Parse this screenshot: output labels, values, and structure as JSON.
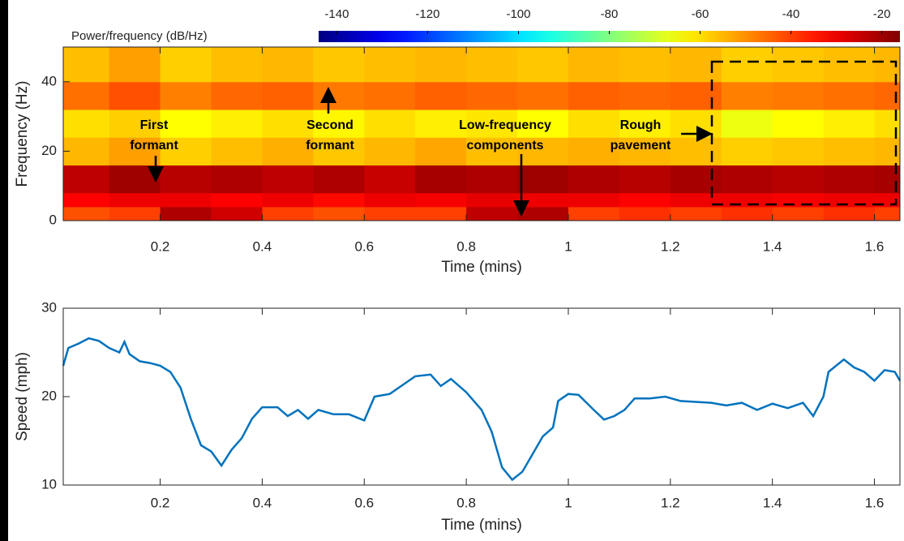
{
  "chart_data": [
    {
      "type": "heatmap",
      "xlabel": "Time (mins)",
      "ylabel": "Frequency (Hz)",
      "colorbar_label": "Power/frequency (dB/Hz)",
      "colormap": "jet",
      "clim": [
        -144,
        -16
      ],
      "colorbar_ticks": [
        -140,
        -120,
        -100,
        -80,
        -60,
        -40,
        -20
      ],
      "xlim": [
        0.01,
        1.65
      ],
      "ylim": [
        0,
        50
      ],
      "xticks": [
        0.2,
        0.4,
        0.6,
        0.8,
        1,
        1.2,
        1.4,
        1.6
      ],
      "yticks": [
        0,
        20,
        40
      ],
      "x": [
        0.01,
        0.1,
        0.2,
        0.3,
        0.4,
        0.5,
        0.6,
        0.7,
        0.8,
        0.9,
        1.0,
        1.1,
        1.2,
        1.3,
        1.4,
        1.5,
        1.6,
        1.65
      ],
      "y": [
        0,
        4,
        8,
        16,
        24,
        32,
        40,
        50
      ],
      "values": [
        [
          -42,
          -40,
          -22,
          -26,
          -40,
          -42,
          -40,
          -40,
          -24,
          -22,
          -40,
          -38,
          -40,
          -38,
          -40,
          -38,
          -40
        ],
        [
          -32,
          -30,
          -30,
          -32,
          -30,
          -33,
          -30,
          -31,
          -29,
          -30,
          -30,
          -32,
          -30,
          -30,
          -31,
          -30,
          -30
        ],
        [
          -24,
          -20,
          -23,
          -22,
          -24,
          -22,
          -25,
          -21,
          -22,
          -20,
          -22,
          -23,
          -21,
          -22,
          -23,
          -22,
          -21
        ],
        [
          -55,
          -52,
          -58,
          -56,
          -54,
          -57,
          -55,
          -53,
          -56,
          -55,
          -54,
          -55,
          -56,
          -58,
          -57,
          -56,
          -55
        ],
        [
          -60,
          -58,
          -64,
          -62,
          -60,
          -63,
          -60,
          -62,
          -61,
          -64,
          -60,
          -62,
          -60,
          -66,
          -64,
          -62,
          -60
        ],
        [
          -46,
          -42,
          -48,
          -45,
          -44,
          -47,
          -46,
          -44,
          -45,
          -46,
          -44,
          -45,
          -44,
          -48,
          -47,
          -46,
          -45
        ],
        [
          -56,
          -52,
          -58,
          -56,
          -55,
          -57,
          -56,
          -55,
          -56,
          -57,
          -55,
          -56,
          -55,
          -58,
          -57,
          -56,
          -55
        ]
      ],
      "annotations": [
        {
          "text": [
            "First",
            "formant"
          ]
        },
        {
          "text": [
            "Second",
            "formant"
          ]
        },
        {
          "text": [
            "Low-frequency",
            "components"
          ]
        },
        {
          "text": [
            "Rough",
            "pavement"
          ]
        }
      ]
    },
    {
      "type": "line",
      "xlabel": "Time (mins)",
      "ylabel": "Speed (mph)",
      "xlim": [
        0.01,
        1.65
      ],
      "ylim": [
        10,
        30
      ],
      "xticks": [
        0.2,
        0.4,
        0.6,
        0.8,
        1,
        1.2,
        1.4,
        1.6
      ],
      "yticks": [
        10,
        20,
        30
      ],
      "color": "#0072bd",
      "x": [
        0.01,
        0.02,
        0.04,
        0.06,
        0.08,
        0.1,
        0.12,
        0.13,
        0.14,
        0.16,
        0.18,
        0.2,
        0.22,
        0.24,
        0.26,
        0.28,
        0.3,
        0.32,
        0.34,
        0.36,
        0.38,
        0.4,
        0.43,
        0.45,
        0.47,
        0.49,
        0.51,
        0.54,
        0.57,
        0.6,
        0.62,
        0.65,
        0.68,
        0.7,
        0.73,
        0.75,
        0.77,
        0.8,
        0.83,
        0.85,
        0.87,
        0.89,
        0.91,
        0.93,
        0.95,
        0.97,
        0.98,
        1.0,
        1.02,
        1.05,
        1.07,
        1.09,
        1.11,
        1.13,
        1.16,
        1.19,
        1.22,
        1.25,
        1.28,
        1.31,
        1.34,
        1.37,
        1.4,
        1.43,
        1.46,
        1.48,
        1.5,
        1.51,
        1.54,
        1.56,
        1.58,
        1.6,
        1.62,
        1.64,
        1.65
      ],
      "values": [
        23.5,
        25.5,
        26,
        26.6,
        26.3,
        25.5,
        25,
        26.2,
        24.8,
        24,
        23.8,
        23.5,
        22.8,
        21,
        17.5,
        14.5,
        13.8,
        12.2,
        14,
        15.3,
        17.5,
        18.8,
        18.8,
        17.8,
        18.5,
        17.5,
        18.5,
        18,
        18,
        17.3,
        20,
        20.3,
        21.5,
        22.3,
        22.5,
        21.2,
        22,
        20.5,
        18.5,
        16,
        12,
        10.6,
        11.5,
        13.5,
        15.5,
        16.5,
        19.5,
        20.3,
        20.2,
        18.5,
        17.4,
        17.8,
        18.5,
        19.8,
        19.8,
        20,
        19.5,
        19.4,
        19.3,
        19,
        19.3,
        18.5,
        19.2,
        18.7,
        19.3,
        17.8,
        20,
        22.8,
        24.2,
        23.3,
        22.8,
        21.8,
        23,
        22.8,
        21.8
      ]
    }
  ]
}
